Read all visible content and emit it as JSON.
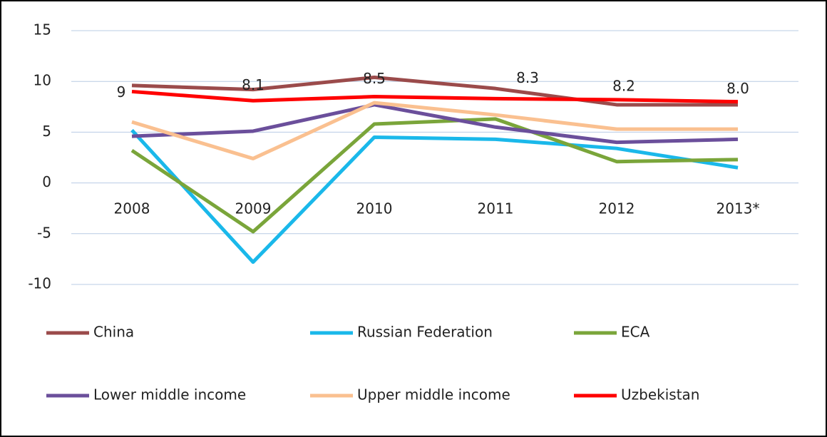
{
  "chart_data": {
    "type": "line",
    "categories": [
      "2008",
      "2009",
      "2010",
      "2011",
      "2012",
      "2013*"
    ],
    "series": [
      {
        "name": "China",
        "color": "#9b4b4b",
        "values": [
          9.6,
          9.2,
          10.4,
          9.3,
          7.7,
          7.7
        ]
      },
      {
        "name": "Russian Federation",
        "color": "#1ab8ea",
        "values": [
          5.2,
          -7.8,
          4.5,
          4.3,
          3.4,
          1.5
        ]
      },
      {
        "name": "ECA",
        "color": "#7aa53a",
        "values": [
          3.2,
          -4.8,
          5.8,
          6.3,
          2.1,
          2.3
        ]
      },
      {
        "name": "Lower middle income",
        "color": "#6b4f9b",
        "values": [
          4.6,
          5.1,
          7.7,
          5.5,
          4.0,
          4.3
        ]
      },
      {
        "name": "Upper middle income",
        "color": "#fac090",
        "values": [
          6.0,
          2.4,
          7.9,
          6.7,
          5.3,
          5.3
        ]
      },
      {
        "name": "Uzbekistan",
        "color": "#ff0000",
        "values": [
          9.0,
          8.1,
          8.5,
          8.3,
          8.2,
          8.0
        ],
        "value_labels": [
          "9",
          "8.1",
          "8.5",
          "8.3",
          "8.2",
          "8.0"
        ]
      }
    ],
    "ylim": [
      -10,
      15
    ],
    "yticks": [
      -10,
      -5,
      0,
      5,
      10,
      15
    ],
    "grid": true,
    "legend": "bottom"
  }
}
